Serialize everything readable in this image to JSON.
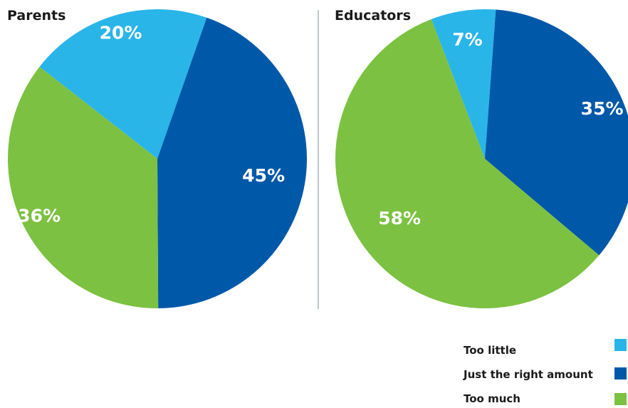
{
  "colors": {
    "too_little": "#29b5e8",
    "just_right": "#0058a8",
    "too_much": "#7cc142",
    "divider": "#a9b4b8"
  },
  "chart_data": [
    {
      "type": "pie",
      "title": "Parents",
      "slices": [
        {
          "name": "Too little",
          "value": 20,
          "label": "20%",
          "color": "#29b5e8"
        },
        {
          "name": "Just the right amount",
          "value": 45,
          "label": "45%",
          "color": "#0058a8"
        },
        {
          "name": "Too much",
          "value": 36,
          "label": "36%",
          "color": "#7cc142"
        }
      ],
      "legend": "bottom-right"
    },
    {
      "type": "pie",
      "title": "Educators",
      "slices": [
        {
          "name": "Too little",
          "value": 7,
          "label": "7%",
          "color": "#29b5e8"
        },
        {
          "name": "Just the right amount",
          "value": 35,
          "label": "35%",
          "color": "#0058a8"
        },
        {
          "name": "Too much",
          "value": 58,
          "label": "58%",
          "color": "#7cc142"
        }
      ],
      "legend": "bottom-right"
    }
  ],
  "legend": {
    "items": [
      {
        "label": "Too little",
        "color": "#29b5e8"
      },
      {
        "label": "Just the right amount",
        "color": "#0058a8"
      },
      {
        "label": "Too much",
        "color": "#7cc142"
      }
    ]
  }
}
